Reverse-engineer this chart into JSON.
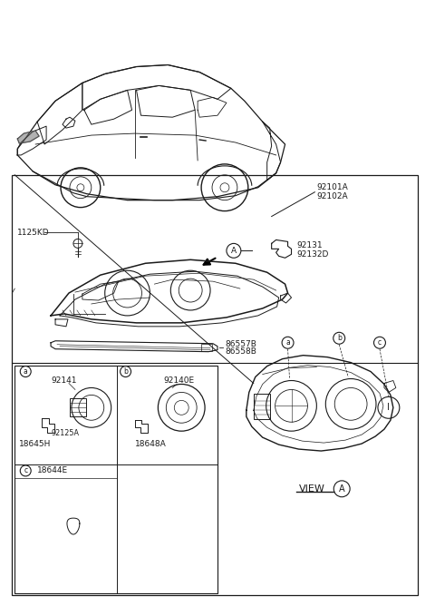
{
  "bg_color": "#ffffff",
  "line_color": "#1a1a1a",
  "text_color": "#1a1a1a",
  "labels": {
    "main_assy": [
      "92101A",
      "92102A"
    ],
    "bracket": [
      "92131",
      "92132D"
    ],
    "bolt": "1125KD",
    "strip_a": "86557B",
    "strip_b": "86558B",
    "cell_a_top": "92141",
    "cell_a_mid": "92125A",
    "cell_a_bot": "18645H",
    "cell_b_mid": "92140E",
    "cell_b_bot": "18648A",
    "cell_c_label": "18644E",
    "view_label": "VIEW",
    "view_circle": "A",
    "circle_a": "A"
  },
  "fs": 6.5,
  "fs_small": 5.8,
  "fs_circle": 5.5
}
